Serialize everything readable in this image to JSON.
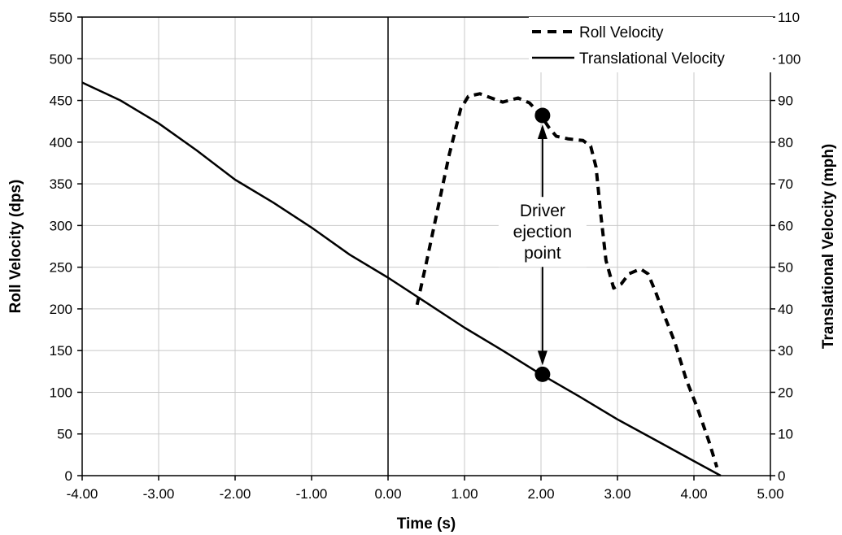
{
  "chart_data": {
    "type": "line",
    "xlabel": "Time (s)",
    "ylabel": "Roll Velocity (dps)",
    "y2label": "Translational Velocity (mph)",
    "xlim": [
      -4,
      5
    ],
    "ylim": [
      0,
      550
    ],
    "y2lim": [
      0,
      110
    ],
    "xticks": [
      -4,
      -3,
      -2,
      -1,
      0,
      1,
      2,
      3,
      4,
      5
    ],
    "xtick_labels": [
      "-4.00",
      "-3.00",
      "-2.00",
      "-1.00",
      "0.00",
      "1.00",
      "2.00",
      "3.00",
      "4.00",
      "5.00"
    ],
    "yticks": [
      0,
      50,
      100,
      150,
      200,
      250,
      300,
      350,
      400,
      450,
      500,
      550
    ],
    "ytick_labels": [
      "0",
      "50",
      "100",
      "150",
      "200",
      "250",
      "300",
      "350",
      "400",
      "450",
      "500",
      "550"
    ],
    "y2ticks": [
      0,
      10,
      20,
      30,
      40,
      50,
      60,
      70,
      80,
      90,
      100,
      110
    ],
    "y2tick_labels": [
      "0",
      "10",
      "20",
      "30",
      "40",
      "50",
      "60",
      "70",
      "80",
      "90",
      "100",
      "110"
    ],
    "grid": true,
    "legend_position": "top-right",
    "series": [
      {
        "name": "Roll Velocity",
        "axis": "left",
        "style": "dashed",
        "points": [
          [
            0.38,
            205
          ],
          [
            0.5,
            255
          ],
          [
            0.65,
            320
          ],
          [
            0.8,
            385
          ],
          [
            0.95,
            440
          ],
          [
            1.05,
            455
          ],
          [
            1.2,
            458
          ],
          [
            1.35,
            453
          ],
          [
            1.5,
            448
          ],
          [
            1.7,
            453
          ],
          [
            1.85,
            447
          ],
          [
            2.0,
            432
          ],
          [
            2.1,
            418
          ],
          [
            2.2,
            407
          ],
          [
            2.35,
            404
          ],
          [
            2.55,
            402
          ],
          [
            2.65,
            395
          ],
          [
            2.72,
            370
          ],
          [
            2.78,
            315
          ],
          [
            2.85,
            258
          ],
          [
            2.95,
            225
          ],
          [
            3.05,
            230
          ],
          [
            3.15,
            242
          ],
          [
            3.3,
            248
          ],
          [
            3.4,
            242
          ],
          [
            3.5,
            220
          ],
          [
            3.6,
            195
          ],
          [
            3.75,
            160
          ],
          [
            3.9,
            115
          ],
          [
            4.05,
            80
          ],
          [
            4.2,
            40
          ],
          [
            4.3,
            10
          ]
        ]
      },
      {
        "name": "Translational Velocity",
        "axis": "right",
        "style": "solid",
        "points": [
          [
            -4.0,
            94.3
          ],
          [
            -3.5,
            90.0
          ],
          [
            -3.0,
            84.5
          ],
          [
            -2.5,
            78.0
          ],
          [
            -2.0,
            71.0
          ],
          [
            -1.5,
            65.5
          ],
          [
            -1.0,
            59.5
          ],
          [
            -0.5,
            53.0
          ],
          [
            0.0,
            47.5
          ],
          [
            0.5,
            41.5
          ],
          [
            1.0,
            35.5
          ],
          [
            1.5,
            30.0
          ],
          [
            2.0,
            24.3
          ],
          [
            2.5,
            19.0
          ],
          [
            3.0,
            13.5
          ],
          [
            3.5,
            8.5
          ],
          [
            4.0,
            3.5
          ],
          [
            4.35,
            0.0
          ]
        ]
      }
    ],
    "annotation": {
      "lines": [
        "Driver",
        "ejection",
        "point"
      ],
      "x": 2.02,
      "roll_point": 432,
      "translational_point": 24.3
    }
  }
}
